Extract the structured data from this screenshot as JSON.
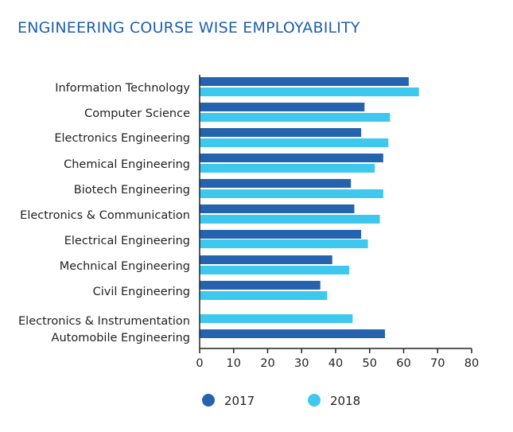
{
  "chart_data": {
    "type": "bar",
    "orientation": "horizontal",
    "title": "ENGINEERING COURSE WISE EMPLOYABILITY",
    "categories": [
      "Information Technology",
      "Computer Science",
      "Electronics Engineering",
      "Chemical Engineering",
      "Biotech Engineering",
      "Electronics & Communication",
      "Electrical Engineering",
      "Mechnical Engineering",
      "Civil Engineering",
      "Electronics & Instrumentation",
      "Automobile Engineering"
    ],
    "series": [
      {
        "name": "2017",
        "color": "#2563ae",
        "values": [
          61.5,
          48.5,
          47.5,
          54,
          44.5,
          45.5,
          47.5,
          39,
          35.5,
          null,
          54.5
        ]
      },
      {
        "name": "2018",
        "color": "#3ec8ee",
        "values": [
          64.5,
          56,
          55.5,
          51.5,
          54,
          53,
          49.5,
          44,
          37.5,
          45,
          null
        ]
      }
    ],
    "xlim": [
      0,
      80
    ],
    "xticks": [
      0,
      10,
      20,
      30,
      40,
      50,
      60,
      70,
      80
    ],
    "xlabel": "",
    "ylabel": "",
    "grid": false,
    "legend_position": "bottom"
  }
}
